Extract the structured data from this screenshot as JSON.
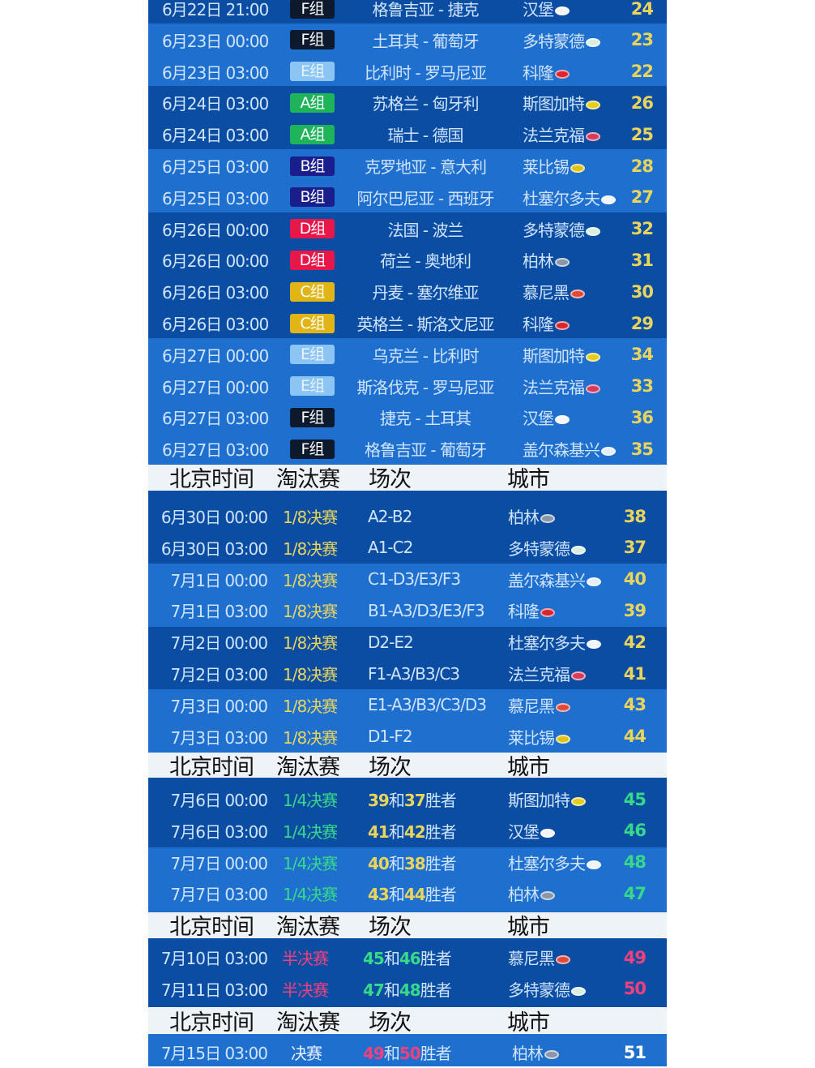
{
  "colors": {
    "dark_band": "#0b4da3",
    "light_band": "#1f6fcf",
    "header_bg": "#eef3f8",
    "number_yellow": "#e9d45c",
    "qf_green": "#36d98a",
    "sf_pink": "#f0407e",
    "date_text": "#cfe4ff"
  },
  "group_colors": {
    "A组": "#1fb35a",
    "B组": "#1a1e8c",
    "C组": "#e0b515",
    "D组": "#e8174a",
    "E组": "#8cc4f4",
    "F组": "#0d1a2e"
  },
  "stadium_icon_colors": {
    "汉堡": "#f4f4f4",
    "多特蒙德": "#d8efe0",
    "科隆": "#d9262e",
    "斯图加特": "#e6cc1e",
    "法兰克福": "#d63b5a",
    "莱比锡": "#e0c21a",
    "杜塞尔多夫": "#eef4fa",
    "柏林": "#8a97a8",
    "慕尼黑": "#e04a3a",
    "盖尔森基兴": "#e4eef8"
  },
  "group_stage": [
    {
      "date": "6月22日 21:00",
      "group": "F组",
      "match": "格鲁吉亚 - 捷克",
      "city": "汉堡",
      "icon": "stadium-icon",
      "no": "24"
    },
    {
      "date": "6月23日 00:00",
      "group": "F组",
      "match": "土耳其 - 葡萄牙",
      "city": "多特蒙德",
      "icon": "stadium-icon",
      "no": "23"
    },
    {
      "date": "6月23日 03:00",
      "group": "E组",
      "match": "比利时 - 罗马尼亚",
      "city": "科隆",
      "icon": "stadium-icon",
      "no": "22"
    },
    {
      "date": "6月24日 03:00",
      "group": "A组",
      "match": "苏格兰 - 匈牙利",
      "city": "斯图加特",
      "icon": "stadium-icon",
      "no": "26"
    },
    {
      "date": "6月24日 03:00",
      "group": "A组",
      "match": "瑞士 - 德国",
      "city": "法兰克福",
      "icon": "stadium-icon",
      "no": "25"
    },
    {
      "date": "6月25日 03:00",
      "group": "B组",
      "match": "克罗地亚 - 意大利",
      "city": "莱比锡",
      "icon": "stadium-icon",
      "no": "28"
    },
    {
      "date": "6月25日 03:00",
      "group": "B组",
      "match": "阿尔巴尼亚 - 西班牙",
      "city": "杜塞尔多夫",
      "icon": "stadium-icon",
      "no": "27"
    },
    {
      "date": "6月26日 00:00",
      "group": "D组",
      "match": "法国 - 波兰",
      "city": "多特蒙德",
      "icon": "stadium-icon",
      "no": "32"
    },
    {
      "date": "6月26日 00:00",
      "group": "D组",
      "match": "荷兰 - 奥地利",
      "city": "柏林",
      "icon": "stadium-icon",
      "no": "31"
    },
    {
      "date": "6月26日 03:00",
      "group": "C组",
      "match": "丹麦 - 塞尔维亚",
      "city": "慕尼黑",
      "icon": "stadium-icon",
      "no": "30"
    },
    {
      "date": "6月26日 03:00",
      "group": "C组",
      "match": "英格兰 - 斯洛文尼亚",
      "city": "科隆",
      "icon": "stadium-icon",
      "no": "29"
    },
    {
      "date": "6月27日 00:00",
      "group": "E组",
      "match": "乌克兰 - 比利时",
      "city": "斯图加特",
      "icon": "stadium-icon",
      "no": "34"
    },
    {
      "date": "6月27日 00:00",
      "group": "E组",
      "match": "斯洛伐克 - 罗马尼亚",
      "city": "法兰克福",
      "icon": "stadium-icon",
      "no": "33"
    },
    {
      "date": "6月27日 03:00",
      "group": "F组",
      "match": "捷克 - 土耳其",
      "city": "汉堡",
      "icon": "stadium-icon",
      "no": "36"
    },
    {
      "date": "6月27日 03:00",
      "group": "F组",
      "match": "格鲁吉亚 - 葡萄牙",
      "city": "盖尔森基兴",
      "icon": "stadium-icon",
      "no": "35"
    }
  ],
  "header": {
    "time": "北京时间",
    "stage": "淘汰赛",
    "match": "场次",
    "city": "城市"
  },
  "round_of_16": [
    {
      "date": "6月30日 00:00",
      "round": "1/8决赛",
      "match": "A2-B2",
      "city": "柏林",
      "no": "38"
    },
    {
      "date": "6月30日 03:00",
      "round": "1/8决赛",
      "match": "A1-C2",
      "city": "多特蒙德",
      "no": "37"
    },
    {
      "date": "7月1日 00:00",
      "round": "1/8决赛",
      "match": "C1-D3/E3/F3",
      "city": "盖尔森基兴",
      "no": "40"
    },
    {
      "date": "7月1日 03:00",
      "round": "1/8决赛",
      "match": "B1-A3/D3/E3/F3",
      "city": "科隆",
      "no": "39"
    },
    {
      "date": "7月2日 00:00",
      "round": "1/8决赛",
      "match": "D2-E2",
      "city": "杜塞尔多夫",
      "no": "42"
    },
    {
      "date": "7月2日 03:00",
      "round": "1/8决赛",
      "match": "F1-A3/B3/C3",
      "city": "法兰克福",
      "no": "41"
    },
    {
      "date": "7月3日 00:00",
      "round": "1/8决赛",
      "match": "E1-A3/B3/C3/D3",
      "city": "慕尼黑",
      "no": "43"
    },
    {
      "date": "7月3日 03:00",
      "round": "1/8决赛",
      "match": "D1-F2",
      "city": "莱比锡",
      "no": "44"
    }
  ],
  "quarter_finals": [
    {
      "date": "7月6日 00:00",
      "round": "1/4决赛",
      "a": "39",
      "sep": "和",
      "b": "37",
      "suffix": "胜者",
      "city": "斯图加特",
      "no": "45"
    },
    {
      "date": "7月6日 03:00",
      "round": "1/4决赛",
      "a": "41",
      "sep": "和",
      "b": "42",
      "suffix": "胜者",
      "city": "汉堡",
      "no": "46"
    },
    {
      "date": "7月7日 00:00",
      "round": "1/4决赛",
      "a": "40",
      "sep": "和",
      "b": "38",
      "suffix": "胜者",
      "city": "杜塞尔多夫",
      "no": "48"
    },
    {
      "date": "7月7日 03:00",
      "round": "1/4决赛",
      "a": "43",
      "sep": "和",
      "b": "44",
      "suffix": "胜者",
      "city": "柏林",
      "no": "47"
    }
  ],
  "semi_finals": [
    {
      "date": "7月10日 03:00",
      "round": "半决赛",
      "a": "45",
      "sep": "和",
      "b": "46",
      "suffix": "胜者",
      "city": "慕尼黑",
      "no": "49"
    },
    {
      "date": "7月11日 03:00",
      "round": "半决赛",
      "a": "47",
      "sep": "和",
      "b": "48",
      "suffix": "胜者",
      "city": "多特蒙德",
      "no": "50"
    }
  ],
  "final": [
    {
      "date": "7月15日 03:00",
      "round": "决赛",
      "a": "49",
      "sep": "和",
      "b": "50",
      "suffix": "胜者",
      "city": "柏林",
      "no": "51"
    }
  ]
}
